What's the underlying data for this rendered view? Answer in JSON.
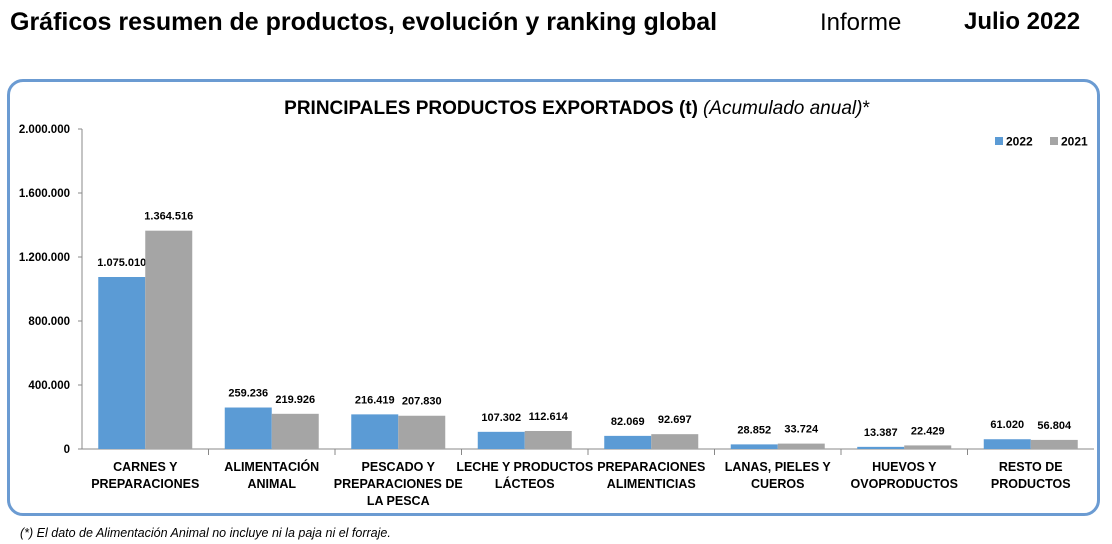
{
  "header": {
    "title": "Gráficos resumen de productos, evolución y ranking global",
    "report_label": "Informe",
    "date": "Julio 2022"
  },
  "footnote": "(*) El dato de Alimentación Animal no incluye ni la paja ni el forraje.",
  "colors": {
    "frame": "#6b9bd2",
    "series_2022": "#5b9bd5",
    "series_2021": "#a5a5a5"
  },
  "chart_data": {
    "type": "bar",
    "title": "PRINCIPALES PRODUCTOS EXPORTADOS (t)",
    "title_suffix": "(Acumulado anual)",
    "title_mark": "*",
    "categories": [
      [
        "CARNES Y",
        "PREPARACIONES"
      ],
      [
        "ALIMENTACIÓN",
        "ANIMAL"
      ],
      [
        "PESCADO Y",
        "PREPARACIONES DE",
        "LA PESCA"
      ],
      [
        "LECHE Y PRODUCTOS",
        "LÁCTEOS"
      ],
      [
        "PREPARACIONES",
        "ALIMENTICIAS"
      ],
      [
        "LANAS, PIELES Y",
        "CUEROS"
      ],
      [
        "HUEVOS Y",
        "OVOPRODUCTOS"
      ],
      [
        "RESTO DE",
        "PRODUCTOS"
      ]
    ],
    "series": [
      {
        "name": "2022",
        "color": "#5b9bd5",
        "values": [
          1075010,
          259236,
          216419,
          107302,
          82069,
          28852,
          13387,
          61020
        ],
        "labels": [
          "1.075.010",
          "259.236",
          "216.419",
          "107.302",
          "82.069",
          "28.852",
          "13.387",
          "61.020"
        ]
      },
      {
        "name": "2021",
        "color": "#a5a5a5",
        "values": [
          1364516,
          219926,
          207830,
          112614,
          92697,
          33724,
          22429,
          56804
        ],
        "labels": [
          "1.364.516",
          "219.926",
          "207.830",
          "112.614",
          "92.697",
          "33.724",
          "22.429",
          "56.804"
        ]
      }
    ],
    "yticks": [
      "2.000.000",
      "1.600.000",
      "1.200.000",
      "800.000",
      "400.000",
      "0"
    ],
    "ylim": [
      0,
      2000000
    ],
    "grid": false,
    "legend_position": "top-right"
  }
}
